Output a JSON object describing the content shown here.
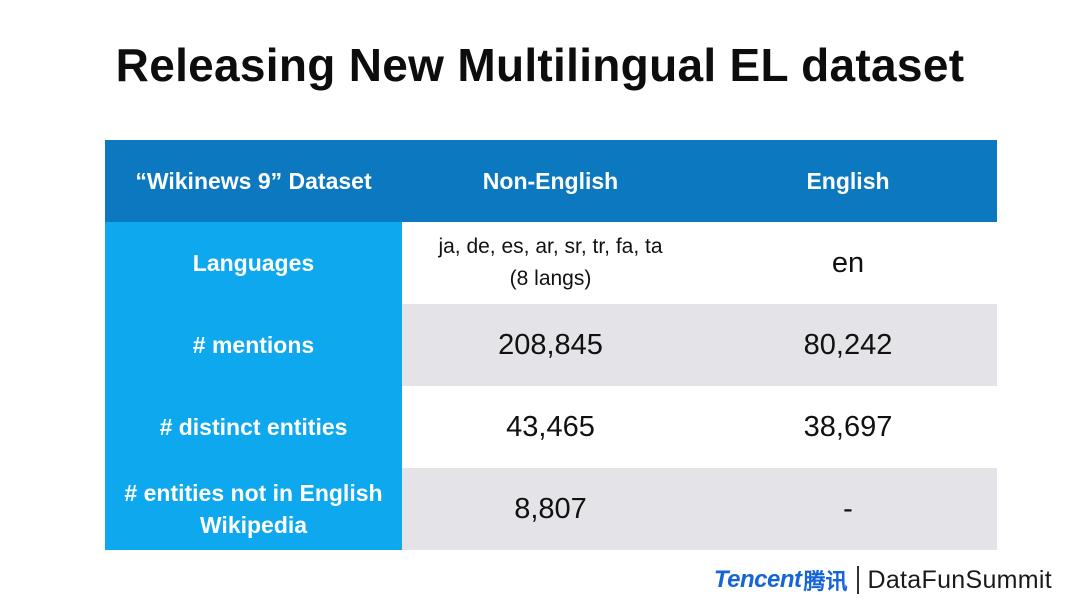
{
  "title": "Releasing New Multilingual EL dataset",
  "table": {
    "headers": [
      "“Wikinews 9” Dataset",
      "Non-English",
      "English"
    ],
    "rows": [
      {
        "label": "Languages",
        "non_english_line1": "ja, de, es, ar, sr, tr, fa, ta",
        "non_english_line2": "(8 langs)",
        "english": "en"
      },
      {
        "label": "# mentions",
        "non_english": "208,845",
        "english": "80,242"
      },
      {
        "label": "# distinct entities",
        "non_english": "43,465",
        "english": "38,697"
      },
      {
        "label_line1": "# entities not in English",
        "label_line2": "Wikipedia",
        "non_english": "8,807",
        "english": "-"
      }
    ]
  },
  "footer": {
    "brand": "Tencent",
    "brand_cn": "腾讯",
    "summit": "DataFunSummit"
  },
  "colors": {
    "header_blue": "#0b78c0",
    "rowhead_blue": "#0ea8ee",
    "stripe_gray": "#e3e3e8",
    "brand_blue": "#1565d8"
  }
}
